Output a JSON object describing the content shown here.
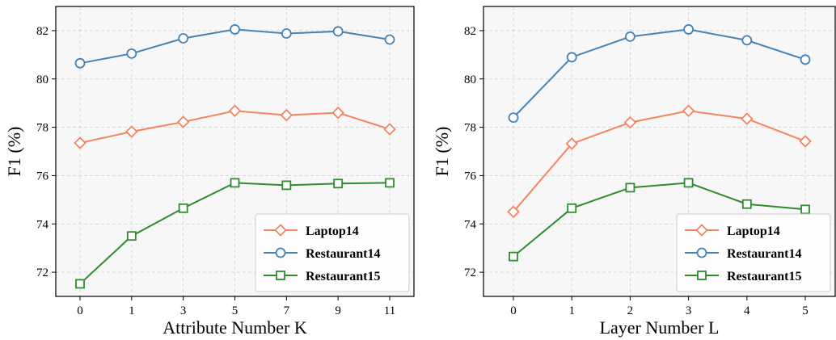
{
  "chart_data": [
    {
      "type": "line",
      "xlabel": "Attribute Number K",
      "ylabel": "F1 (%)",
      "x": [
        "0",
        "1",
        "3",
        "5",
        "7",
        "9",
        "11"
      ],
      "ylim": [
        71,
        83
      ],
      "yticks": [
        72,
        74,
        76,
        78,
        80,
        82
      ],
      "grid": true,
      "legend_position": "lower-right",
      "series": [
        {
          "name": "Laptop14",
          "color": "#f4845f",
          "marker": "diamond",
          "values": [
            77.35,
            77.82,
            78.22,
            78.68,
            78.5,
            78.6,
            77.92
          ]
        },
        {
          "name": "Restaurant14",
          "color": "#4682b4",
          "marker": "circle",
          "values": [
            80.65,
            81.05,
            81.68,
            82.05,
            81.88,
            81.97,
            81.63
          ]
        },
        {
          "name": "Restaurant15",
          "color": "#2e8b2e",
          "marker": "square",
          "values": [
            71.52,
            73.5,
            74.65,
            75.7,
            75.6,
            75.67,
            75.7
          ]
        }
      ]
    },
    {
      "type": "line",
      "xlabel": "Layer Number L",
      "ylabel": "F1 (%)",
      "x": [
        "0",
        "1",
        "2",
        "3",
        "4",
        "5"
      ],
      "ylim": [
        71,
        83
      ],
      "yticks": [
        72,
        74,
        76,
        78,
        80,
        82
      ],
      "grid": true,
      "legend_position": "lower-right",
      "series": [
        {
          "name": "Laptop14",
          "color": "#f4845f",
          "marker": "diamond",
          "values": [
            74.5,
            77.32,
            78.2,
            78.68,
            78.35,
            77.42
          ]
        },
        {
          "name": "Restaurant14",
          "color": "#4682b4",
          "marker": "circle",
          "values": [
            78.4,
            80.9,
            81.75,
            82.05,
            81.6,
            80.8
          ]
        },
        {
          "name": "Restaurant15",
          "color": "#2e8b2e",
          "marker": "square",
          "values": [
            72.65,
            74.65,
            75.5,
            75.7,
            74.82,
            74.6
          ]
        }
      ]
    }
  ]
}
